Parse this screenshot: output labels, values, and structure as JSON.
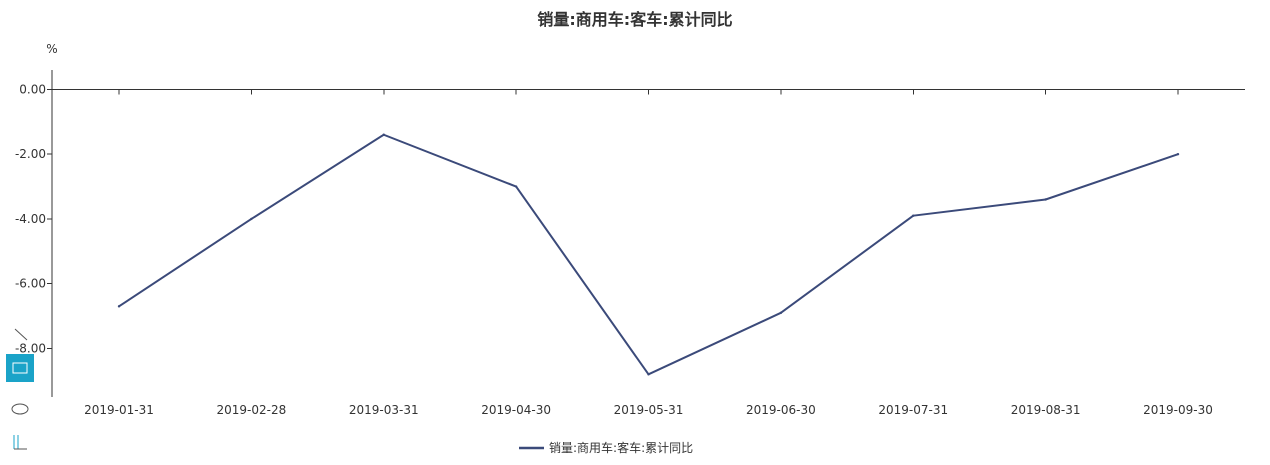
{
  "chart_data": {
    "type": "line",
    "title": "销量:商用车:客车:累计同比",
    "unit_label": "%",
    "categories": [
      "2019-01-31",
      "2019-02-28",
      "2019-03-31",
      "2019-04-30",
      "2019-05-31",
      "2019-06-30",
      "2019-07-31",
      "2019-08-31",
      "2019-09-30"
    ],
    "series": [
      {
        "name": "销量:商用车:客车:累计同比",
        "values": [
          -6.7,
          -4.0,
          -1.4,
          -3.0,
          -8.8,
          -6.9,
          -3.9,
          -3.4,
          -2.0
        ],
        "color": "#3b4a7a"
      }
    ],
    "ylim": [
      -9.5,
      0.6
    ],
    "yticks": [
      0,
      -2,
      -4,
      -6,
      -8
    ],
    "ytick_labels": [
      "0.00",
      "-2.00",
      "-4.00",
      "-6.00",
      "-8.00"
    ],
    "grid": false,
    "legend_position": "bottom-center"
  },
  "toolbox": {
    "icons": [
      "line-select-icon",
      "rect-select-icon",
      "lasso-select-icon",
      "clear-select-icon"
    ],
    "active_color": "#1aa3c8"
  }
}
